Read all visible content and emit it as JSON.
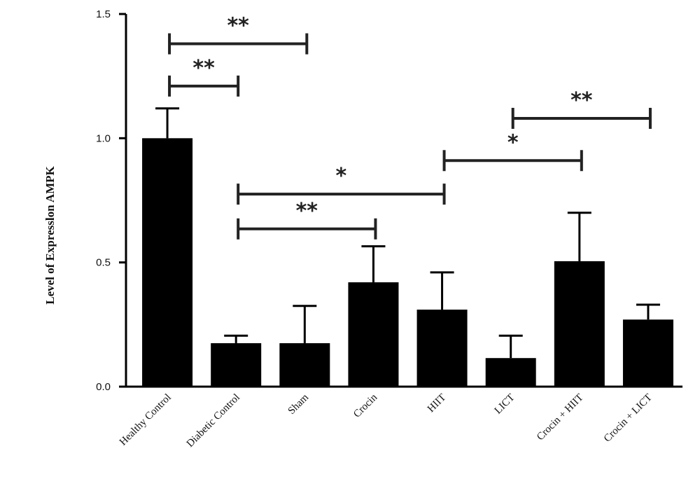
{
  "chart_data": {
    "type": "bar",
    "title": "",
    "xlabel": "",
    "ylabel": "Level of Expresslon AMPK",
    "ylim": [
      0,
      1.5
    ],
    "yticks": [
      {
        "value": 0.0,
        "label": "0.0"
      },
      {
        "value": 0.5,
        "label": "0.5"
      },
      {
        "value": 1.0,
        "label": "1.0"
      },
      {
        "value": 1.5,
        "label": "1.5"
      }
    ],
    "categories": [
      "Healthy Control",
      "Diabetic Control",
      "Sham",
      "Crocin",
      "HIIT",
      "LICT",
      "Crocin + HIIT",
      "Crocin + LICT"
    ],
    "values": [
      1.0,
      0.175,
      0.175,
      0.42,
      0.31,
      0.115,
      0.505,
      0.27
    ],
    "errors": [
      0.12,
      0.03,
      0.15,
      0.145,
      0.15,
      0.09,
      0.195,
      0.06
    ],
    "bar_color": "#000000",
    "grid": false,
    "legend": "none",
    "significance": [
      {
        "from": 0,
        "to": 2,
        "y": 1.38,
        "label": "**"
      },
      {
        "from": 0,
        "to": 1,
        "y": 1.21,
        "label": "**"
      },
      {
        "from": 5,
        "to": 7,
        "y": 1.08,
        "label": "**"
      },
      {
        "from": 4,
        "to": 6,
        "y": 0.91,
        "label": "*"
      },
      {
        "from": 1,
        "to": 4,
        "y": 0.775,
        "label": "*"
      },
      {
        "from": 1,
        "to": 3,
        "y": 0.635,
        "label": "**"
      }
    ]
  }
}
